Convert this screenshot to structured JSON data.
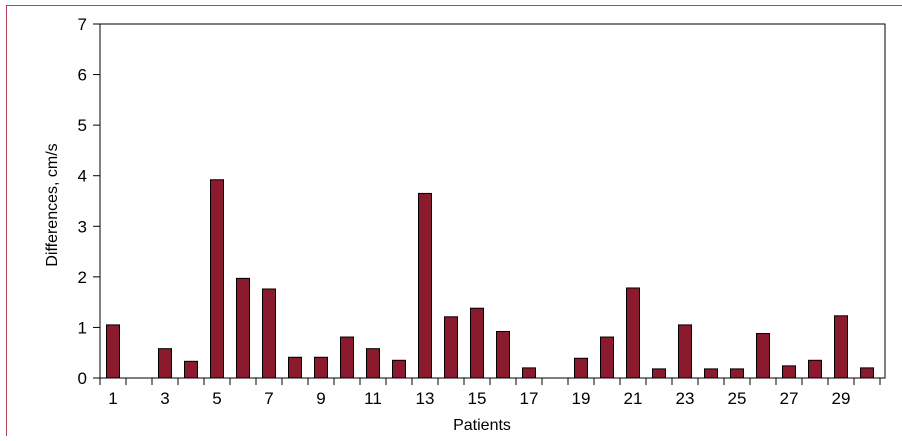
{
  "chart_data": {
    "type": "bar",
    "xlabel": "Patients",
    "ylabel": "Differences, cm/s",
    "ylim": [
      0,
      7
    ],
    "yticks": [
      "0",
      "1",
      "2",
      "3",
      "4",
      "5",
      "6",
      "7"
    ],
    "xtick_labels": [
      "1",
      "3",
      "5",
      "7",
      "9",
      "11",
      "13",
      "15",
      "17",
      "19",
      "21",
      "23",
      "25",
      "27",
      "29"
    ],
    "categories": [
      1,
      2,
      3,
      4,
      5,
      6,
      7,
      8,
      9,
      10,
      11,
      12,
      13,
      14,
      15,
      16,
      17,
      18,
      19,
      20,
      21,
      22,
      23,
      24,
      25,
      26,
      27,
      28,
      29,
      30
    ],
    "values": [
      1.05,
      0,
      0.58,
      0.33,
      3.92,
      1.97,
      1.76,
      0.41,
      0.41,
      0.81,
      0.58,
      0.35,
      3.65,
      1.21,
      1.38,
      0.92,
      0.2,
      0,
      0.39,
      0.81,
      1.78,
      0.18,
      1.05,
      0.18,
      0.18,
      0.88,
      0.24,
      0.35,
      1.23,
      0.2
    ],
    "bar_color": "#8b1a2e",
    "frame_color": "#b5405a",
    "grid": false
  }
}
